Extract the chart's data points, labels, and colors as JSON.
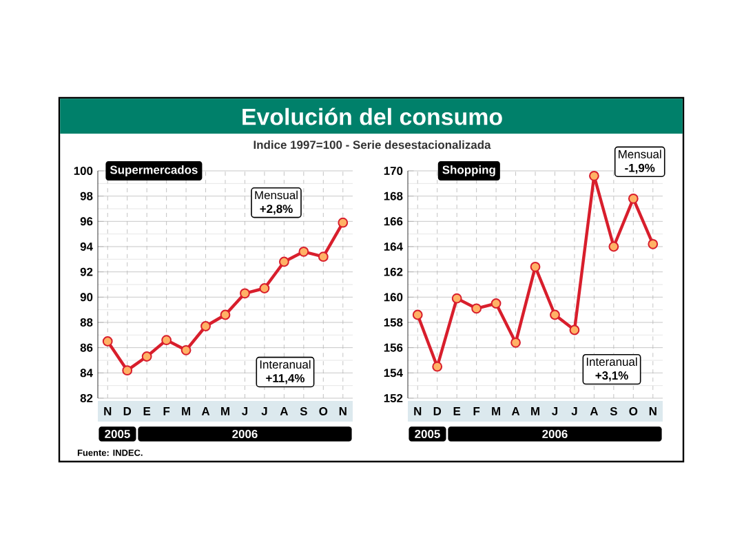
{
  "chart_data": [
    {
      "type": "line",
      "title": "Evolución del consumo",
      "subtitle": "Indice 1997=100 - Serie desestacionalizada",
      "categories": [
        "N",
        "D",
        "E",
        "F",
        "M",
        "A",
        "M",
        "J",
        "J",
        "A",
        "S",
        "O",
        "N"
      ],
      "series": [
        {
          "name": "Supermercados",
          "color": "#d81e2c",
          "values": [
            86.5,
            84.2,
            85.3,
            86.6,
            85.8,
            87.7,
            88.6,
            90.3,
            90.7,
            92.8,
            93.6,
            93.2,
            95.9
          ]
        }
      ],
      "ylim": [
        82,
        100
      ],
      "yticks": [
        82,
        84,
        86,
        88,
        90,
        92,
        94,
        96,
        98,
        100
      ],
      "grid": true,
      "marker": "circle",
      "annotations": [
        "Mensual",
        "+2,8%",
        "Interanual",
        "+11,4%",
        "2005",
        "2006",
        "Fuente: INDEC."
      ]
    },
    {
      "type": "line",
      "categories": [
        "N",
        "D",
        "E",
        "F",
        "M",
        "A",
        "M",
        "J",
        "J",
        "A",
        "S",
        "O",
        "N"
      ],
      "series": [
        {
          "name": "Shopping",
          "color": "#d81e2c",
          "values": [
            158.6,
            154.5,
            159.9,
            159.1,
            159.5,
            156.4,
            162.4,
            158.6,
            157.4,
            169.6,
            164.0,
            167.8,
            164.2
          ]
        }
      ],
      "ylim": [
        152,
        170
      ],
      "yticks": [
        152,
        154,
        156,
        158,
        160,
        162,
        164,
        166,
        168,
        170
      ],
      "grid": true,
      "marker": "circle",
      "annotations": [
        "Mensual",
        "-1,9%",
        "Interanual",
        "+3,1%",
        "2005",
        "2006"
      ]
    }
  ]
}
